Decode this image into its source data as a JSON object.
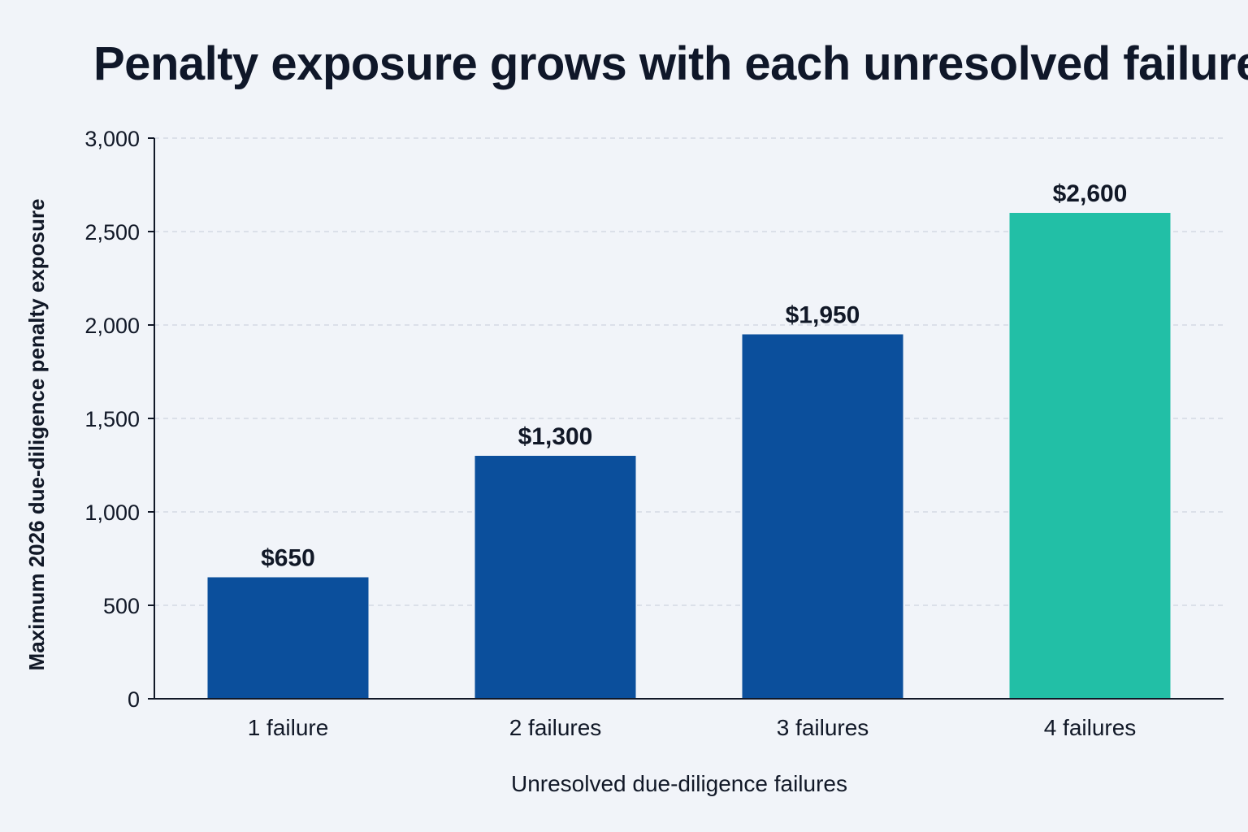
{
  "chart_data": {
    "type": "bar",
    "title": "Penalty exposure grows with each unresolved failure",
    "xlabel": "Unresolved due-diligence failures",
    "ylabel": "Maximum 2026 due-diligence penalty exposure",
    "categories": [
      "1 failure",
      "2 failures",
      "3 failures",
      "4 failures"
    ],
    "values": [
      650,
      1300,
      1950,
      2600
    ],
    "data_labels": [
      "$650",
      "$1,300",
      "$1,950",
      "$2,600"
    ],
    "ylim": [
      0,
      3000
    ],
    "yticks": [
      0,
      500,
      1000,
      1500,
      2000,
      2500,
      3000
    ],
    "ytick_labels": [
      "0",
      "500",
      "1,000",
      "1,500",
      "2,000",
      "2,500",
      "3,000"
    ],
    "bar_colors": [
      "#0b4f9c",
      "#0b4f9c",
      "#0b4f9c",
      "#22bfa6"
    ],
    "axis_color": "#111827",
    "grid": true,
    "grid_color": "#d4dae4",
    "legend": "none"
  }
}
